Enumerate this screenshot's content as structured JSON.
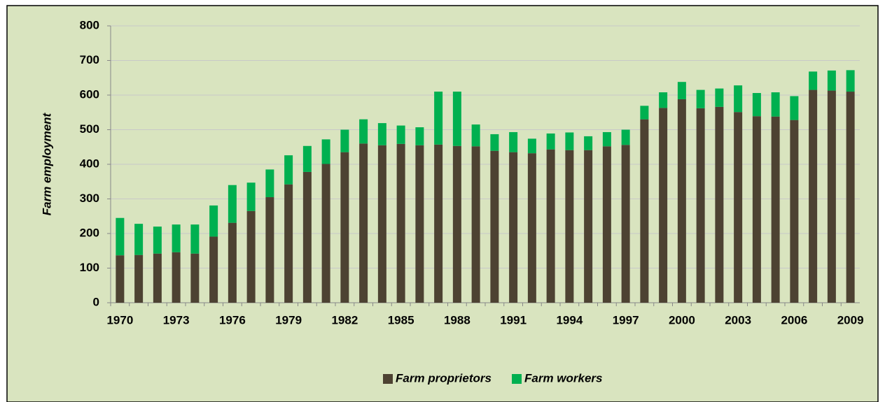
{
  "chart_data": {
    "type": "stacked_bar",
    "y_label": "Farm employment",
    "categories": [
      "1970",
      null,
      null,
      "1973",
      null,
      null,
      "1976",
      null,
      null,
      "1979",
      null,
      null,
      "1982",
      null,
      null,
      "1985",
      null,
      null,
      "1988",
      null,
      null,
      "1991",
      null,
      null,
      "1994",
      null,
      null,
      "1997",
      null,
      null,
      "2000",
      null,
      null,
      "2003",
      null,
      null,
      "2006",
      null,
      null,
      "2009"
    ],
    "series": [
      {
        "name": "Farm proprietors",
        "color": "#4d4232",
        "values": [
          137,
          138,
          142,
          146,
          142,
          191,
          231,
          265,
          305,
          342,
          378,
          401,
          435,
          460,
          455,
          459,
          455,
          457,
          453,
          452,
          439,
          435,
          432,
          443,
          441,
          441,
          452,
          456,
          530,
          563,
          588,
          562,
          566,
          551,
          539,
          538,
          528,
          615,
          613,
          610
        ]
      },
      {
        "name": "Farm workers",
        "color": "#00b050",
        "values": [
          108,
          90,
          78,
          80,
          84,
          90,
          109,
          82,
          80,
          84,
          75,
          71,
          65,
          70,
          64,
          53,
          52,
          153,
          157,
          63,
          48,
          58,
          42,
          46,
          51,
          40,
          41,
          44,
          39,
          45,
          50,
          53,
          53,
          77,
          67,
          70,
          69,
          53,
          58,
          62
        ]
      }
    ],
    "ylim": [
      0,
      800
    ],
    "yticks": [
      0,
      100,
      200,
      300,
      400,
      500,
      600,
      700,
      800
    ],
    "grid": true,
    "legend": "bottom"
  }
}
